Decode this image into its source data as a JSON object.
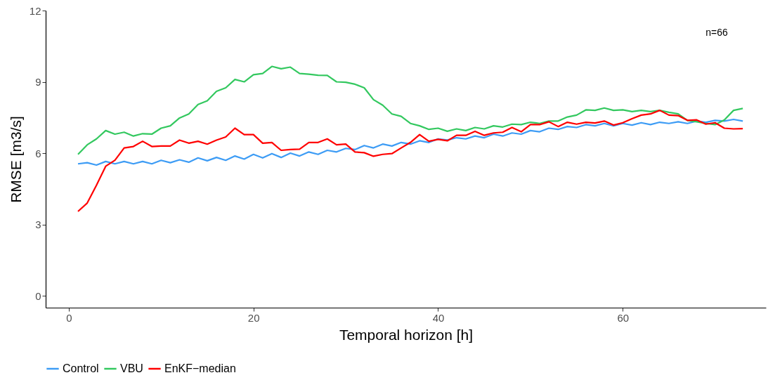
{
  "chart_data": {
    "type": "line",
    "xlabel": "Temporal horizon [h]",
    "ylabel": "RMSE [m3/s]",
    "x": [
      1,
      2,
      3,
      4,
      5,
      6,
      7,
      8,
      9,
      10,
      11,
      12,
      13,
      14,
      15,
      16,
      17,
      18,
      19,
      20,
      21,
      22,
      23,
      24,
      25,
      26,
      27,
      28,
      29,
      30,
      31,
      32,
      33,
      34,
      35,
      36,
      37,
      38,
      39,
      40,
      41,
      42,
      43,
      44,
      45,
      46,
      47,
      48,
      49,
      50,
      51,
      52,
      53,
      54,
      55,
      56,
      57,
      58,
      59,
      60,
      61,
      62,
      63,
      64,
      65,
      66,
      67,
      68,
      69,
      70,
      71,
      72,
      73
    ],
    "series": [
      {
        "name": "Control",
        "color": "#3d9cf5",
        "values": [
          5.55,
          5.6,
          5.5,
          5.65,
          5.55,
          5.65,
          5.55,
          5.65,
          5.55,
          5.7,
          5.6,
          5.72,
          5.62,
          5.8,
          5.68,
          5.82,
          5.7,
          5.88,
          5.75,
          5.95,
          5.8,
          5.98,
          5.82,
          6.0,
          5.88,
          6.05,
          5.95,
          6.12,
          6.05,
          6.2,
          6.15,
          6.32,
          6.22,
          6.38,
          6.3,
          6.45,
          6.38,
          6.52,
          6.45,
          6.6,
          6.55,
          6.65,
          6.6,
          6.72,
          6.65,
          6.8,
          6.72,
          6.85,
          6.8,
          6.95,
          6.9,
          7.05,
          7.0,
          7.12,
          7.08,
          7.2,
          7.15,
          7.25,
          7.15,
          7.25,
          7.18,
          7.28,
          7.2,
          7.3,
          7.25,
          7.32,
          7.25,
          7.35,
          7.3,
          7.38,
          7.35,
          7.42,
          7.35
        ]
      },
      {
        "name": "VBU",
        "color": "#33c85f",
        "values": [
          5.95,
          6.35,
          6.6,
          6.95,
          6.8,
          6.88,
          6.72,
          6.82,
          6.8,
          7.05,
          7.15,
          7.48,
          7.65,
          8.05,
          8.2,
          8.6,
          8.75,
          9.1,
          9.0,
          9.3,
          9.35,
          9.65,
          9.55,
          9.62,
          9.35,
          9.32,
          9.28,
          9.27,
          9.0,
          8.98,
          8.9,
          8.75,
          8.25,
          8.02,
          7.65,
          7.55,
          7.25,
          7.15,
          7.0,
          7.05,
          6.92,
          7.02,
          6.95,
          7.08,
          7.02,
          7.15,
          7.1,
          7.22,
          7.2,
          7.3,
          7.25,
          7.35,
          7.35,
          7.52,
          7.6,
          7.82,
          7.8,
          7.9,
          7.8,
          7.82,
          7.75,
          7.8,
          7.75,
          7.8,
          7.72,
          7.65,
          7.38,
          7.32,
          7.25,
          7.2,
          7.4,
          7.8,
          7.88
        ]
      },
      {
        "name": "EnKF−median",
        "color": "#ff0000",
        "values": [
          3.55,
          3.9,
          4.65,
          5.45,
          5.7,
          6.22,
          6.28,
          6.5,
          6.28,
          6.3,
          6.3,
          6.55,
          6.42,
          6.5,
          6.38,
          6.55,
          6.68,
          7.05,
          6.78,
          6.78,
          6.42,
          6.45,
          6.12,
          6.15,
          6.17,
          6.45,
          6.45,
          6.6,
          6.35,
          6.38,
          6.05,
          6.02,
          5.87,
          5.95,
          5.98,
          6.22,
          6.45,
          6.78,
          6.5,
          6.58,
          6.52,
          6.75,
          6.75,
          6.92,
          6.75,
          6.85,
          6.88,
          7.08,
          6.9,
          7.2,
          7.2,
          7.32,
          7.12,
          7.3,
          7.22,
          7.3,
          7.27,
          7.35,
          7.18,
          7.28,
          7.45,
          7.6,
          7.65,
          7.8,
          7.6,
          7.58,
          7.38,
          7.4,
          7.22,
          7.28,
          7.05,
          7.02,
          7.03
        ]
      }
    ],
    "xlim": [
      -2.5,
      75.5
    ],
    "xticks": [
      0,
      20,
      40,
      60
    ],
    "ylim": [
      -0.5,
      12
    ],
    "yticks": [
      0,
      3,
      6,
      9,
      12
    ],
    "annotations": [
      "n=66"
    ],
    "legend": "bottom",
    "grid": false
  }
}
